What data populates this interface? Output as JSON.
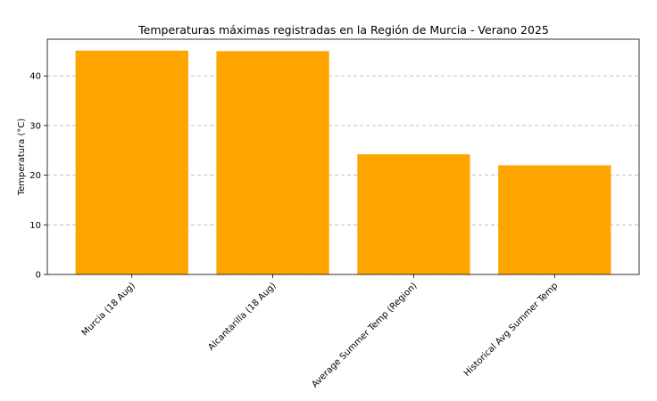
{
  "chart_data": {
    "type": "bar",
    "title": "Temperaturas máximas registradas en la Región de Murcia - Verano 2025",
    "xlabel": "",
    "ylabel": "Temperatura (°C)",
    "categories": [
      "Murcia (18 Aug)",
      "Alcantarilla (18 Aug)",
      "Average Summer Temp (Region)",
      "Historical Avg Summer Temp"
    ],
    "values": [
      45.1,
      45.0,
      24.2,
      22.0
    ],
    "ylim": [
      0,
      47.4
    ],
    "yticks": [
      0,
      10,
      20,
      30,
      40
    ],
    "bar_color": "#FFA500",
    "grid": "y-dashed",
    "legend": "none"
  }
}
